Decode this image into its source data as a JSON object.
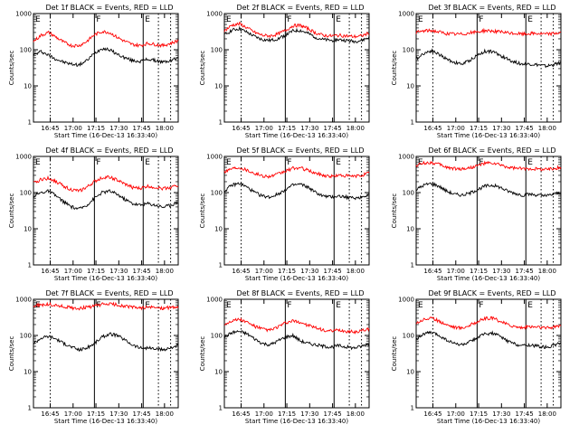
{
  "figure": {
    "axis_ylabel": "Counts/sec",
    "axis_xlabel": "Start Time (16-Dec-13 16:33:40)",
    "x_ticks": [
      "16:45",
      "17:00",
      "17:15",
      "17:30",
      "17:45",
      "18:00"
    ],
    "y_ticks": [
      "1",
      "10",
      "100",
      "1000"
    ],
    "colors": {
      "events": "#000000",
      "lld": "#ff0000",
      "axes": "#000000"
    }
  },
  "chart_data": [
    {
      "type": "line",
      "title": "Det 1f BLACK = Events, RED = LLD",
      "x_unit": "minutes after 16:33:40",
      "yscale": "log",
      "ylim": [
        1,
        1000
      ],
      "xlim": [
        0,
        95
      ],
      "grid": false,
      "markers": [
        {
          "label": "E",
          "x": 0,
          "style": "solid"
        },
        {
          "label": "F",
          "x": 40,
          "style": "solid"
        },
        {
          "label": "E",
          "x": 72,
          "style": "solid"
        }
      ],
      "dotted_lines_x": [
        11,
        82,
        90
      ],
      "x": [
        0,
        5,
        10,
        15,
        20,
        25,
        30,
        35,
        40,
        45,
        50,
        55,
        60,
        65,
        70,
        75,
        80,
        85,
        90,
        95
      ],
      "series": [
        {
          "name": "Events",
          "color": "#000000",
          "values": [
            70,
            90,
            70,
            55,
            45,
            40,
            38,
            50,
            80,
            110,
            100,
            75,
            60,
            50,
            48,
            55,
            50,
            45,
            50,
            60
          ]
        },
        {
          "name": "LLD",
          "color": "#ff0000",
          "values": [
            170,
            250,
            300,
            220,
            160,
            130,
            130,
            170,
            260,
            320,
            300,
            220,
            170,
            140,
            130,
            150,
            140,
            130,
            150,
            180
          ]
        }
      ]
    },
    {
      "type": "line",
      "title": "Det 2f BLACK = Events, RED = LLD",
      "x_unit": "minutes after 16:33:40",
      "yscale": "log",
      "ylim": [
        1,
        1000
      ],
      "xlim": [
        0,
        95
      ],
      "grid": false,
      "markers": [
        {
          "label": "E",
          "x": 0,
          "style": "solid"
        },
        {
          "label": "F",
          "x": 40,
          "style": "solid"
        },
        {
          "label": "E",
          "x": 72,
          "style": "solid"
        }
      ],
      "dotted_lines_x": [
        11,
        82,
        90
      ],
      "x": [
        0,
        5,
        10,
        15,
        20,
        25,
        30,
        35,
        40,
        45,
        50,
        55,
        60,
        65,
        70,
        75,
        80,
        85,
        90,
        95
      ],
      "series": [
        {
          "name": "Events",
          "color": "#000000",
          "values": [
            250,
            350,
            380,
            300,
            230,
            190,
            180,
            200,
            250,
            330,
            340,
            280,
            220,
            190,
            180,
            190,
            180,
            170,
            180,
            220
          ]
        },
        {
          "name": "LLD",
          "color": "#ff0000",
          "values": [
            330,
            480,
            520,
            400,
            300,
            250,
            240,
            270,
            340,
            460,
            470,
            380,
            290,
            250,
            240,
            250,
            240,
            230,
            240,
            290
          ]
        }
      ]
    },
    {
      "type": "line",
      "title": "Det 3f BLACK = Events, RED = LLD",
      "x_unit": "minutes after 16:33:40",
      "yscale": "log",
      "ylim": [
        1,
        1000
      ],
      "xlim": [
        0,
        95
      ],
      "grid": false,
      "markers": [
        {
          "label": "E",
          "x": 0,
          "style": "solid"
        },
        {
          "label": "F",
          "x": 40,
          "style": "solid"
        },
        {
          "label": "E",
          "x": 72,
          "style": "solid"
        }
      ],
      "dotted_lines_x": [
        11,
        82,
        90
      ],
      "x": [
        0,
        5,
        10,
        15,
        20,
        25,
        30,
        35,
        40,
        45,
        50,
        55,
        60,
        65,
        70,
        75,
        80,
        85,
        90,
        95
      ],
      "series": [
        {
          "name": "Events",
          "color": "#000000",
          "values": [
            55,
            80,
            95,
            75,
            55,
            45,
            40,
            50,
            70,
            90,
            90,
            70,
            55,
            45,
            40,
            40,
            38,
            35,
            38,
            45
          ]
        },
        {
          "name": "LLD",
          "color": "#ff0000",
          "values": [
            300,
            330,
            340,
            310,
            280,
            270,
            270,
            290,
            310,
            340,
            330,
            310,
            290,
            280,
            270,
            280,
            280,
            270,
            280,
            300
          ]
        }
      ]
    },
    {
      "type": "line",
      "title": "Det 4f BLACK = Events, RED = LLD",
      "x_unit": "minutes after 16:33:40",
      "yscale": "log",
      "ylim": [
        1,
        1000
      ],
      "xlim": [
        0,
        95
      ],
      "grid": false,
      "markers": [
        {
          "label": "E",
          "x": 0,
          "style": "solid"
        },
        {
          "label": "F",
          "x": 40,
          "style": "solid"
        },
        {
          "label": "E",
          "x": 72,
          "style": "solid"
        }
      ],
      "dotted_lines_x": [
        11,
        82,
        90
      ],
      "x": [
        0,
        5,
        10,
        15,
        20,
        25,
        30,
        35,
        40,
        45,
        50,
        55,
        60,
        65,
        70,
        75,
        80,
        85,
        90,
        95
      ],
      "series": [
        {
          "name": "Events",
          "color": "#000000",
          "values": [
            80,
            100,
            110,
            80,
            55,
            40,
            35,
            45,
            70,
            100,
            110,
            90,
            65,
            50,
            45,
            50,
            45,
            40,
            45,
            55
          ]
        },
        {
          "name": "LLD",
          "color": "#ff0000",
          "values": [
            180,
            230,
            250,
            200,
            150,
            120,
            110,
            140,
            200,
            260,
            270,
            220,
            170,
            140,
            130,
            150,
            140,
            130,
            140,
            160
          ]
        }
      ]
    },
    {
      "type": "line",
      "title": "Det 5f BLACK = Events, RED = LLD",
      "x_unit": "minutes after 16:33:40",
      "yscale": "log",
      "ylim": [
        1,
        1000
      ],
      "xlim": [
        0,
        95
      ],
      "grid": false,
      "markers": [
        {
          "label": "E",
          "x": 0,
          "style": "solid"
        },
        {
          "label": "F",
          "x": 40,
          "style": "solid"
        },
        {
          "label": "E",
          "x": 72,
          "style": "solid"
        }
      ],
      "dotted_lines_x": [
        11,
        82,
        90
      ],
      "x": [
        0,
        5,
        10,
        15,
        20,
        25,
        30,
        35,
        40,
        45,
        50,
        55,
        60,
        65,
        70,
        75,
        80,
        85,
        90,
        95
      ],
      "series": [
        {
          "name": "Events",
          "color": "#000000",
          "values": [
            110,
            160,
            180,
            140,
            100,
            80,
            75,
            90,
            120,
            160,
            170,
            140,
            100,
            80,
            75,
            80,
            75,
            70,
            75,
            90
          ]
        },
        {
          "name": "LLD",
          "color": "#ff0000",
          "values": [
            380,
            470,
            500,
            420,
            340,
            290,
            280,
            320,
            390,
            470,
            480,
            410,
            340,
            300,
            280,
            300,
            290,
            280,
            300,
            350
          ]
        }
      ]
    },
    {
      "type": "line",
      "title": "Det 6f BLACK = Events, RED = LLD",
      "x_unit": "minutes after 16:33:40",
      "yscale": "log",
      "ylim": [
        1,
        1000
      ],
      "xlim": [
        0,
        95
      ],
      "grid": false,
      "markers": [
        {
          "label": "E",
          "x": 0,
          "style": "solid"
        },
        {
          "label": "F",
          "x": 40,
          "style": "solid"
        },
        {
          "label": "E",
          "x": 72,
          "style": "solid"
        }
      ],
      "dotted_lines_x": [
        11,
        82,
        90
      ],
      "x": [
        0,
        5,
        10,
        15,
        20,
        25,
        30,
        35,
        40,
        45,
        50,
        55,
        60,
        65,
        70,
        75,
        80,
        85,
        90,
        95
      ],
      "series": [
        {
          "name": "Events",
          "color": "#000000",
          "values": [
            120,
            160,
            180,
            150,
            110,
            90,
            85,
            95,
            120,
            150,
            160,
            140,
            110,
            95,
            85,
            90,
            85,
            80,
            90,
            100
          ]
        },
        {
          "name": "LLD",
          "color": "#ff0000",
          "values": [
            560,
            650,
            680,
            600,
            500,
            460,
            450,
            480,
            550,
            640,
            650,
            580,
            500,
            470,
            450,
            460,
            450,
            440,
            460,
            500
          ]
        }
      ]
    },
    {
      "type": "line",
      "title": "Det 7f BLACK = Events, RED = LLD",
      "x_unit": "minutes after 16:33:40",
      "yscale": "log",
      "ylim": [
        1,
        1000
      ],
      "xlim": [
        0,
        95
      ],
      "grid": false,
      "markers": [
        {
          "label": "E",
          "x": 0,
          "style": "solid"
        },
        {
          "label": "F",
          "x": 40,
          "style": "solid"
        },
        {
          "label": "E",
          "x": 72,
          "style": "solid"
        }
      ],
      "dotted_lines_x": [
        11,
        82,
        90
      ],
      "x": [
        0,
        5,
        10,
        15,
        20,
        25,
        30,
        35,
        40,
        45,
        50,
        55,
        60,
        65,
        70,
        75,
        80,
        85,
        90,
        95
      ],
      "series": [
        {
          "name": "Events",
          "color": "#000000",
          "values": [
            60,
            85,
            95,
            80,
            60,
            48,
            40,
            45,
            60,
            90,
            110,
            100,
            75,
            55,
            45,
            45,
            42,
            40,
            45,
            55
          ]
        },
        {
          "name": "LLD",
          "color": "#ff0000",
          "values": [
            650,
            700,
            720,
            680,
            620,
            580,
            560,
            600,
            650,
            720,
            740,
            700,
            640,
            600,
            580,
            600,
            590,
            570,
            590,
            620
          ]
        }
      ]
    },
    {
      "type": "line",
      "title": "Det 8f BLACK = Events, RED = LLD",
      "x_unit": "minutes after 16:33:40",
      "yscale": "log",
      "ylim": [
        1,
        1000
      ],
      "xlim": [
        0,
        95
      ],
      "grid": false,
      "markers": [
        {
          "label": "E",
          "x": 0,
          "style": "solid"
        },
        {
          "label": "F",
          "x": 40,
          "style": "solid"
        },
        {
          "label": "E",
          "x": 72,
          "style": "solid"
        }
      ],
      "dotted_lines_x": [
        11,
        82,
        90
      ],
      "x": [
        0,
        5,
        10,
        15,
        20,
        25,
        30,
        35,
        40,
        45,
        50,
        55,
        60,
        65,
        70,
        75,
        80,
        85,
        90,
        95
      ],
      "series": [
        {
          "name": "Events",
          "color": "#000000",
          "values": [
            90,
            120,
            130,
            110,
            80,
            60,
            55,
            70,
            90,
            100,
            70,
            60,
            55,
            50,
            48,
            52,
            48,
            45,
            50,
            60
          ]
        },
        {
          "name": "LLD",
          "color": "#ff0000",
          "values": [
            200,
            260,
            280,
            230,
            180,
            150,
            140,
            170,
            220,
            250,
            230,
            190,
            160,
            140,
            130,
            140,
            130,
            125,
            135,
            150
          ]
        }
      ]
    },
    {
      "type": "line",
      "title": "Det 9f BLACK = Events, RED = LLD",
      "x_unit": "minutes after 16:33:40",
      "yscale": "log",
      "ylim": [
        1,
        1000
      ],
      "xlim": [
        0,
        95
      ],
      "grid": false,
      "markers": [
        {
          "label": "E",
          "x": 0,
          "style": "solid"
        },
        {
          "label": "F",
          "x": 40,
          "style": "solid"
        },
        {
          "label": "E",
          "x": 72,
          "style": "solid"
        }
      ],
      "dotted_lines_x": [
        11,
        82,
        90
      ],
      "x": [
        0,
        5,
        10,
        15,
        20,
        25,
        30,
        35,
        40,
        45,
        50,
        55,
        60,
        65,
        70,
        75,
        80,
        85,
        90,
        95
      ],
      "series": [
        {
          "name": "Events",
          "color": "#000000",
          "values": [
            80,
            110,
            120,
            100,
            75,
            60,
            55,
            65,
            85,
            110,
            115,
            95,
            70,
            58,
            52,
            55,
            50,
            48,
            52,
            62
          ]
        },
        {
          "name": "LLD",
          "color": "#ff0000",
          "values": [
            220,
            280,
            300,
            250,
            200,
            170,
            160,
            190,
            240,
            290,
            300,
            250,
            200,
            175,
            165,
            175,
            170,
            160,
            170,
            190
          ]
        }
      ]
    }
  ]
}
